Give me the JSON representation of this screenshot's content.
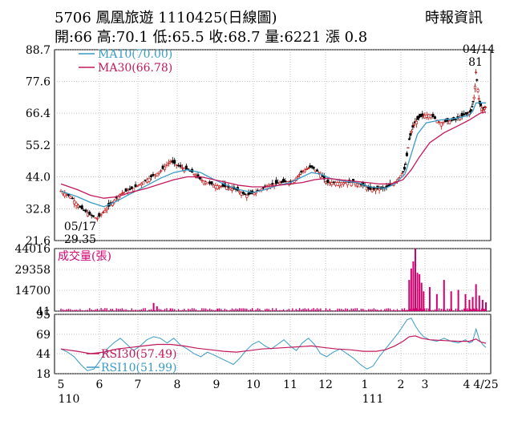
{
  "header": {
    "title": "5706  鳳凰旅遊 1110425(日線圖)",
    "source": "時報資訊",
    "quote": "開:66 高:70.1 低:65.5 收:68.7 量:6221 漲 0.8"
  },
  "chart_data": {
    "type": "candlestick",
    "price_axis": {
      "ticks": [
        88.7,
        77.6,
        66.4,
        55.2,
        44.0,
        32.8,
        21.6
      ],
      "ylim": [
        21.6,
        88.7
      ]
    },
    "volume_axis": {
      "ticks": [
        44016,
        29358,
        14700,
        41
      ],
      "ylim": [
        41,
        44016
      ],
      "label": "成交量(張)"
    },
    "rsi_axis": {
      "ticks": [
        95,
        69,
        44,
        18
      ],
      "ylim": [
        18,
        95
      ]
    },
    "x_ticks": [
      "5",
      "6",
      "7",
      "8",
      "9",
      "10",
      "11",
      "12",
      "1",
      "2",
      "3",
      "4",
      "4/25"
    ],
    "x_year_labels": [
      "110",
      "111"
    ],
    "legend": {
      "ma10": "MA10(70.00)",
      "ma30": "MA30(66.78)",
      "rsi30": "RSI30(57.49)",
      "rsi10": "RSI10(51.99)"
    },
    "annotations": {
      "high": {
        "date": "04/14",
        "value": "81"
      },
      "low": {
        "date": "05/17",
        "value": "29.35"
      }
    },
    "price_path": [
      [
        0,
        39
      ],
      [
        0.03,
        37
      ],
      [
        0.06,
        33
      ],
      [
        0.09,
        30.5
      ],
      [
        0.11,
        29.35
      ],
      [
        0.14,
        33
      ],
      [
        0.18,
        38
      ],
      [
        0.22,
        40
      ],
      [
        0.26,
        43
      ],
      [
        0.3,
        46
      ],
      [
        0.33,
        49.5
      ],
      [
        0.36,
        47.5
      ],
      [
        0.39,
        46
      ],
      [
        0.42,
        43
      ],
      [
        0.46,
        41
      ],
      [
        0.5,
        40.5
      ],
      [
        0.53,
        39.5
      ],
      [
        0.56,
        37.5
      ],
      [
        0.59,
        38.5
      ],
      [
        0.63,
        41
      ],
      [
        0.67,
        42
      ],
      [
        0.71,
        42.5
      ],
      [
        0.74,
        46
      ],
      [
        0.77,
        47.5
      ],
      [
        0.8,
        45
      ],
      [
        0.82,
        42
      ],
      [
        0.86,
        42
      ],
      [
        0.9,
        42
      ],
      [
        0.93,
        41
      ],
      [
        0.95,
        39.5
      ],
      [
        1.0,
        40
      ],
      [
        1.03,
        42
      ],
      [
        1.07,
        47
      ],
      [
        1.09,
        57
      ],
      [
        1.11,
        62
      ],
      [
        1.14,
        65
      ],
      [
        1.18,
        66
      ],
      [
        1.21,
        63
      ],
      [
        1.25,
        64
      ],
      [
        1.28,
        66
      ],
      [
        1.31,
        67
      ],
      [
        1.33,
        72.5
      ],
      [
        1.34,
        81
      ],
      [
        1.36,
        70
      ],
      [
        1.38,
        67.5
      ],
      [
        1.4,
        68.7
      ]
    ],
    "ma10_path": [
      [
        0,
        39
      ],
      [
        0.05,
        37
      ],
      [
        0.09,
        35
      ],
      [
        0.13,
        33.5
      ],
      [
        0.17,
        35.5
      ],
      [
        0.21,
        38
      ],
      [
        0.26,
        41
      ],
      [
        0.3,
        43.5
      ],
      [
        0.34,
        45.5
      ],
      [
        0.38,
        46.5
      ],
      [
        0.42,
        45.5
      ],
      [
        0.46,
        43
      ],
      [
        0.5,
        41
      ],
      [
        0.54,
        39.5
      ],
      [
        0.58,
        38.5
      ],
      [
        0.62,
        39.5
      ],
      [
        0.66,
        41
      ],
      [
        0.7,
        42
      ],
      [
        0.74,
        44
      ],
      [
        0.77,
        45.5
      ],
      [
        0.8,
        45
      ],
      [
        0.83,
        43.5
      ],
      [
        0.87,
        42.5
      ],
      [
        0.91,
        42
      ],
      [
        0.95,
        40.5
      ],
      [
        1.0,
        40
      ],
      [
        1.03,
        41.5
      ],
      [
        1.07,
        45
      ],
      [
        1.1,
        52
      ],
      [
        1.13,
        59
      ],
      [
        1.17,
        63
      ],
      [
        1.21,
        64
      ],
      [
        1.25,
        64.5
      ],
      [
        1.29,
        65.5
      ],
      [
        1.32,
        67
      ],
      [
        1.34,
        70
      ],
      [
        1.37,
        70
      ],
      [
        1.4,
        70
      ]
    ],
    "ma30_path": [
      [
        0,
        41.5
      ],
      [
        0.05,
        39.5
      ],
      [
        0.09,
        37.5
      ],
      [
        0.13,
        36.5
      ],
      [
        0.17,
        37
      ],
      [
        0.21,
        38.5
      ],
      [
        0.26,
        40
      ],
      [
        0.3,
        41.5
      ],
      [
        0.34,
        43
      ],
      [
        0.38,
        44
      ],
      [
        0.42,
        44
      ],
      [
        0.46,
        43
      ],
      [
        0.5,
        42
      ],
      [
        0.54,
        41
      ],
      [
        0.58,
        40.5
      ],
      [
        0.62,
        40.5
      ],
      [
        0.66,
        41
      ],
      [
        0.7,
        41.5
      ],
      [
        0.74,
        42
      ],
      [
        0.78,
        43
      ],
      [
        0.82,
        43.5
      ],
      [
        0.86,
        43
      ],
      [
        0.9,
        42.5
      ],
      [
        0.94,
        42
      ],
      [
        0.98,
        41.5
      ],
      [
        1.02,
        41.5
      ],
      [
        1.06,
        43
      ],
      [
        1.1,
        46.5
      ],
      [
        1.14,
        51
      ],
      [
        1.18,
        56
      ],
      [
        1.22,
        59.5
      ],
      [
        1.26,
        62
      ],
      [
        1.3,
        64
      ],
      [
        1.34,
        65.5
      ],
      [
        1.37,
        66.5
      ],
      [
        1.4,
        66.78
      ]
    ],
    "rsi10_path": [
      [
        0,
        50
      ],
      [
        0.02,
        46
      ],
      [
        0.04,
        40
      ],
      [
        0.06,
        30
      ],
      [
        0.08,
        22
      ],
      [
        0.1,
        24
      ],
      [
        0.12,
        36
      ],
      [
        0.14,
        50
      ],
      [
        0.16,
        58
      ],
      [
        0.18,
        64
      ],
      [
        0.2,
        56
      ],
      [
        0.22,
        48
      ],
      [
        0.24,
        54
      ],
      [
        0.26,
        62
      ],
      [
        0.28,
        66
      ],
      [
        0.3,
        64
      ],
      [
        0.32,
        58
      ],
      [
        0.34,
        64
      ],
      [
        0.36,
        55
      ],
      [
        0.38,
        50
      ],
      [
        0.4,
        44
      ],
      [
        0.42,
        40
      ],
      [
        0.44,
        46
      ],
      [
        0.46,
        42
      ],
      [
        0.48,
        38
      ],
      [
        0.5,
        34
      ],
      [
        0.52,
        30
      ],
      [
        0.54,
        38
      ],
      [
        0.56,
        48
      ],
      [
        0.58,
        56
      ],
      [
        0.6,
        60
      ],
      [
        0.62,
        54
      ],
      [
        0.64,
        50
      ],
      [
        0.66,
        56
      ],
      [
        0.68,
        62
      ],
      [
        0.7,
        54
      ],
      [
        0.72,
        48
      ],
      [
        0.74,
        58
      ],
      [
        0.76,
        64
      ],
      [
        0.78,
        56
      ],
      [
        0.8,
        44
      ],
      [
        0.82,
        40
      ],
      [
        0.84,
        46
      ],
      [
        0.86,
        50
      ],
      [
        0.88,
        44
      ],
      [
        0.9,
        38
      ],
      [
        0.92,
        30
      ],
      [
        0.94,
        24
      ],
      [
        0.96,
        28
      ],
      [
        0.98,
        40
      ],
      [
        1.0,
        50
      ],
      [
        1.02,
        60
      ],
      [
        1.04,
        70
      ],
      [
        1.06,
        80
      ],
      [
        1.08,
        88
      ],
      [
        1.1,
        90
      ],
      [
        1.12,
        80
      ],
      [
        1.14,
        72
      ],
      [
        1.16,
        66
      ],
      [
        1.18,
        62
      ],
      [
        1.2,
        60
      ],
      [
        1.22,
        64
      ],
      [
        1.24,
        60
      ],
      [
        1.26,
        58
      ],
      [
        1.28,
        62
      ],
      [
        1.3,
        58
      ],
      [
        1.32,
        60
      ],
      [
        1.34,
        76
      ],
      [
        1.36,
        62
      ],
      [
        1.38,
        56
      ],
      [
        1.4,
        51.99
      ]
    ],
    "rsi30_path": [
      [
        0,
        50
      ],
      [
        0.05,
        47
      ],
      [
        0.09,
        44
      ],
      [
        0.13,
        46
      ],
      [
        0.17,
        50
      ],
      [
        0.21,
        52
      ],
      [
        0.25,
        54
      ],
      [
        0.29,
        56
      ],
      [
        0.33,
        56
      ],
      [
        0.37,
        54
      ],
      [
        0.41,
        51
      ],
      [
        0.45,
        49
      ],
      [
        0.49,
        47
      ],
      [
        0.53,
        46
      ],
      [
        0.57,
        48
      ],
      [
        0.61,
        50
      ],
      [
        0.65,
        51
      ],
      [
        0.69,
        52
      ],
      [
        0.73,
        53
      ],
      [
        0.77,
        54
      ],
      [
        0.81,
        52
      ],
      [
        0.85,
        50
      ],
      [
        0.89,
        49
      ],
      [
        0.93,
        47
      ],
      [
        0.97,
        47
      ],
      [
        1.0,
        49
      ],
      [
        1.03,
        54
      ],
      [
        1.06,
        60
      ],
      [
        1.09,
        66
      ],
      [
        1.12,
        67
      ],
      [
        1.15,
        64
      ],
      [
        1.18,
        62
      ],
      [
        1.22,
        61
      ],
      [
        1.26,
        60
      ],
      [
        1.3,
        60
      ],
      [
        1.34,
        63
      ],
      [
        1.37,
        59
      ],
      [
        1.4,
        57.49
      ]
    ],
    "volume_spikes": [
      [
        0.28,
        5800
      ],
      [
        0.29,
        3500
      ],
      [
        0.33,
        2000
      ],
      [
        0.47,
        1800
      ],
      [
        1.09,
        22000
      ],
      [
        1.1,
        30000
      ],
      [
        1.11,
        35000
      ],
      [
        1.12,
        44016
      ],
      [
        1.13,
        27000
      ],
      [
        1.14,
        26000
      ],
      [
        1.15,
        20000
      ],
      [
        1.16,
        14000
      ],
      [
        1.18,
        17000
      ],
      [
        1.2,
        12000
      ],
      [
        1.22,
        22000
      ],
      [
        1.24,
        14000
      ],
      [
        1.26,
        15000
      ],
      [
        1.28,
        12000
      ],
      [
        1.3,
        8000
      ],
      [
        1.32,
        10000
      ],
      [
        1.34,
        19000
      ],
      [
        1.36,
        11000
      ],
      [
        1.38,
        8000
      ],
      [
        1.4,
        6221
      ]
    ]
  }
}
